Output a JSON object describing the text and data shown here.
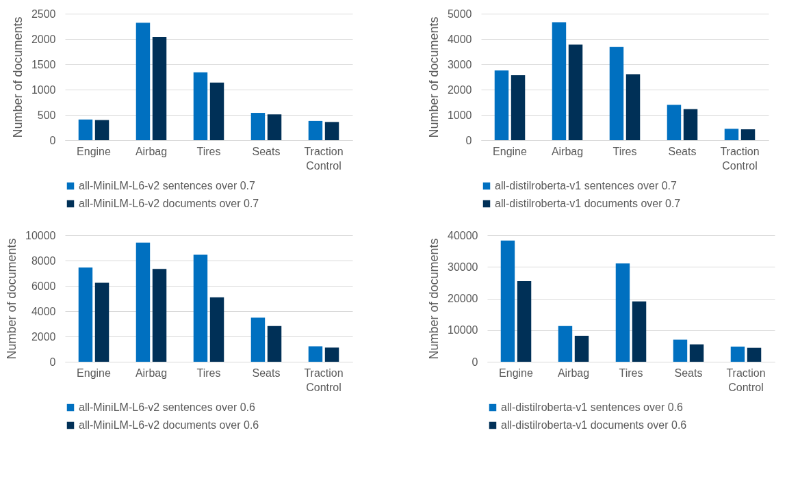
{
  "chart_data": [
    {
      "type": "bar",
      "categories": [
        "Engine",
        "Airbag",
        "Tires",
        "Seats",
        "Traction Control"
      ],
      "ylabel": "Number of documents",
      "ylim": [
        0,
        2500
      ],
      "yticks": [
        0,
        500,
        1000,
        1500,
        2000,
        2500
      ],
      "grid": "y",
      "legend": "bottom",
      "series": [
        {
          "name": "all-MiniLM-L6-v2 sentences over 0.7",
          "color": "#0070c0",
          "values": [
            410,
            2320,
            1340,
            540,
            380
          ]
        },
        {
          "name": "all-MiniLM-L6-v2 documents over 0.7",
          "color": "#003057",
          "values": [
            400,
            2040,
            1140,
            510,
            360
          ]
        }
      ]
    },
    {
      "type": "bar",
      "categories": [
        "Engine",
        "Airbag",
        "Tires",
        "Seats",
        "Traction Control"
      ],
      "ylabel": "Number of documents",
      "ylim": [
        0,
        5000
      ],
      "yticks": [
        0,
        1000,
        2000,
        3000,
        4000,
        5000
      ],
      "grid": "y",
      "legend": "bottom",
      "series": [
        {
          "name": "all-distilroberta-v1 sentences over 0.7",
          "color": "#0070c0",
          "values": [
            2760,
            4660,
            3680,
            1400,
            450
          ]
        },
        {
          "name": "all-distilroberta-v1 documents over 0.7",
          "color": "#003057",
          "values": [
            2570,
            3780,
            2610,
            1230,
            430
          ]
        }
      ]
    },
    {
      "type": "bar",
      "categories": [
        "Engine",
        "Airbag",
        "Tires",
        "Seats",
        "Traction Control"
      ],
      "ylabel": "Number of documents",
      "ylim": [
        0,
        10000
      ],
      "yticks": [
        0,
        2000,
        4000,
        6000,
        8000,
        10000
      ],
      "grid": "y",
      "legend": "bottom",
      "series": [
        {
          "name": "all-MiniLM-L6-v2 sentences over 0.6",
          "color": "#0070c0",
          "values": [
            7450,
            9420,
            8460,
            3480,
            1220
          ]
        },
        {
          "name": "all-MiniLM-L6-v2 documents over 0.6",
          "color": "#003057",
          "values": [
            6240,
            7340,
            5100,
            2820,
            1120
          ]
        }
      ]
    },
    {
      "type": "bar",
      "categories": [
        "Engine",
        "Airbag",
        "Tires",
        "Seats",
        "Traction Control"
      ],
      "ylabel": "Number of documents",
      "ylim": [
        0,
        40000
      ],
      "yticks": [
        0,
        10000,
        20000,
        30000,
        40000
      ],
      "grid": "y",
      "legend": "bottom",
      "series": [
        {
          "name": "all-distilroberta-v1 sentences over 0.6",
          "color": "#0070c0",
          "values": [
            38300,
            11300,
            31100,
            7000,
            4800
          ]
        },
        {
          "name": "all-distilroberta-v1 documents over 0.6",
          "color": "#003057",
          "values": [
            25500,
            8200,
            19100,
            5500,
            4400
          ]
        }
      ]
    }
  ]
}
